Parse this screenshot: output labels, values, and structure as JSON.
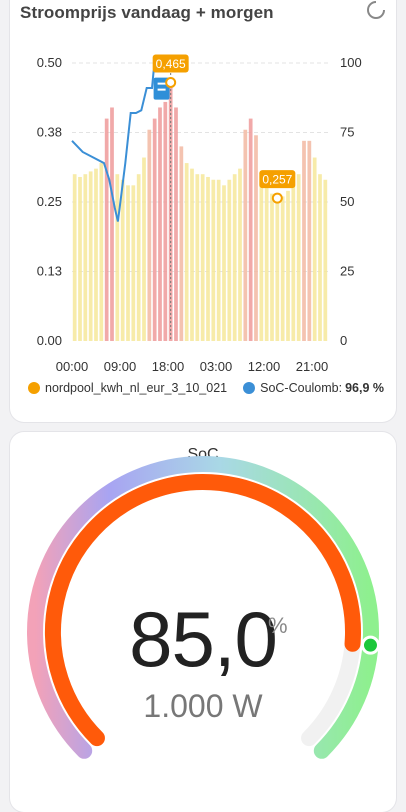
{
  "chart_card": {
    "title": "Stroomprijs vandaag + morgen",
    "refresh_icon": "refresh-icon",
    "legend": [
      {
        "name": "nordpool_kwh_nl_eur_3_10_021",
        "color": "#f5a000",
        "value": ""
      },
      {
        "name": "SoC-Coulomb",
        "color": "#3b8fd6",
        "value": "96,9 %"
      }
    ]
  },
  "chart_data": {
    "type": "bar",
    "y_left": {
      "ticks": [
        "0.00",
        "0.13",
        "0.25",
        "0.38",
        "0.50"
      ],
      "range": [
        0,
        0.5
      ]
    },
    "y_right": {
      "ticks": [
        "0",
        "25",
        "50",
        "75",
        "100"
      ],
      "range": [
        0,
        100
      ]
    },
    "x_ticks": [
      "00:00",
      "09:00",
      "18:00",
      "03:00",
      "12:00",
      "21:00"
    ],
    "now_marker_time": "18:00",
    "price_bars": [
      0.3,
      0.295,
      0.3,
      0.305,
      0.31,
      0.32,
      0.4,
      0.42,
      0.3,
      0.29,
      0.28,
      0.28,
      0.3,
      0.33,
      0.38,
      0.4,
      0.42,
      0.43,
      0.465,
      0.42,
      0.35,
      0.32,
      0.31,
      0.3,
      0.3,
      0.295,
      0.29,
      0.29,
      0.28,
      0.29,
      0.3,
      0.31,
      0.38,
      0.4,
      0.37,
      0.3,
      0.28,
      0.265,
      0.257,
      0.26,
      0.27,
      0.28,
      0.3,
      0.36,
      0.36,
      0.33,
      0.3,
      0.29
    ],
    "highlight_bar_colors": {
      "high": "#f2b9a2",
      "peak": "#ee9a9a",
      "normal": "#f6e79a"
    },
    "soc_series": [
      {
        "t": 0,
        "v": 72
      },
      {
        "t": 2,
        "v": 68
      },
      {
        "t": 4,
        "v": 66
      },
      {
        "t": 6,
        "v": 64
      },
      {
        "t": 7,
        "v": 58
      },
      {
        "t": 8,
        "v": 48
      },
      {
        "t": 8.6,
        "v": 43
      },
      {
        "t": 9.2,
        "v": 52
      },
      {
        "t": 10,
        "v": 64
      },
      {
        "t": 11,
        "v": 82
      },
      {
        "t": 12,
        "v": 82
      },
      {
        "t": 13,
        "v": 83
      },
      {
        "t": 14,
        "v": 91
      },
      {
        "t": 15,
        "v": 91
      },
      {
        "t": 15.3,
        "v": 97
      },
      {
        "t": 16.8,
        "v": 97
      }
    ],
    "annotations": [
      {
        "label": "0,465",
        "t": 18.5,
        "v": 0.465,
        "color": "#f5a000"
      },
      {
        "label": "0,257",
        "t": 38.5,
        "v": 0.257,
        "color": "#f5a000"
      }
    ],
    "soc_badge_icon": "battery-flow-icon"
  },
  "gauge_card": {
    "label": "SoC",
    "value": "85,0",
    "unit": "%",
    "sub_value": "1.000 W",
    "fraction": 0.85,
    "arc_color": "#ff5a0a"
  }
}
